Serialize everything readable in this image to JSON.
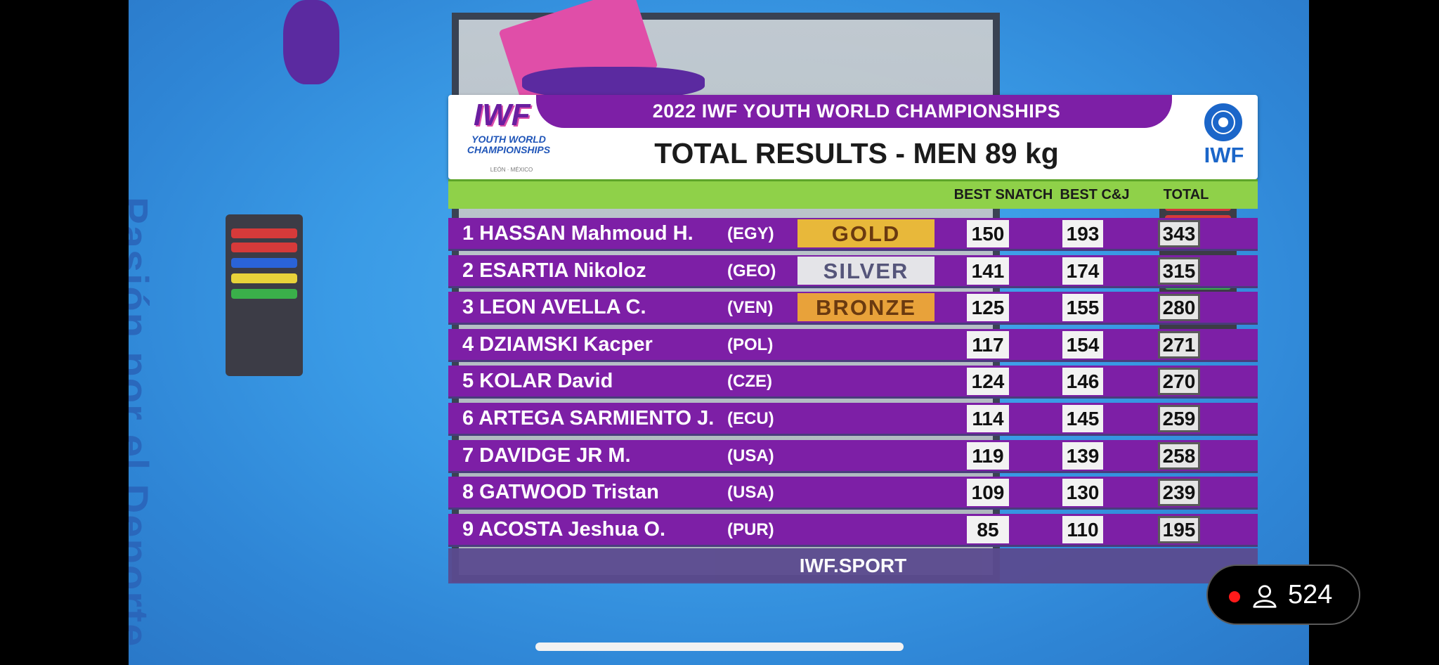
{
  "header": {
    "event": "2022 IWF YOUTH WORLD CHAMPIONSHIPS",
    "title": "TOTAL RESULTS - MEN 89 kg",
    "left_logo_big": "IWF",
    "left_logo_sub": "YOUTH WORLD CHAMPIONSHIPS",
    "left_logo_tiny": "LEÓN · MÉXICO",
    "right_logo": "IWF"
  },
  "columns": {
    "snatch": "BEST SNATCH",
    "cj": "BEST C&J",
    "total": "TOTAL"
  },
  "results": [
    {
      "rank_name": "1 HASSAN Mahmoud H.",
      "country": "(EGY)",
      "medal": "GOLD",
      "snatch": "150",
      "cj": "193",
      "total": "343"
    },
    {
      "rank_name": "2 ESARTIA Nikoloz",
      "country": "(GEO)",
      "medal": "SILVER",
      "snatch": "141",
      "cj": "174",
      "total": "315"
    },
    {
      "rank_name": "3 LEON AVELLA C.",
      "country": "(VEN)",
      "medal": "BRONZE",
      "snatch": "125",
      "cj": "155",
      "total": "280"
    },
    {
      "rank_name": "4 DZIAMSKI Kacper",
      "country": "(POL)",
      "medal": "",
      "snatch": "117",
      "cj": "154",
      "total": "271"
    },
    {
      "rank_name": "5 KOLAR David",
      "country": "(CZE)",
      "medal": "",
      "snatch": "124",
      "cj": "146",
      "total": "270"
    },
    {
      "rank_name": "6 ARTEGA SARMIENTO J.",
      "country": "(ECU)",
      "medal": "",
      "snatch": "114",
      "cj": "145",
      "total": "259"
    },
    {
      "rank_name": "7 DAVIDGE JR M.",
      "country": "(USA)",
      "medal": "",
      "snatch": "119",
      "cj": "139",
      "total": "258"
    },
    {
      "rank_name": "8 GATWOOD Tristan",
      "country": "(USA)",
      "medal": "",
      "snatch": "109",
      "cj": "130",
      "total": "239"
    },
    {
      "rank_name": "9 ACOSTA Jeshua O.",
      "country": "(PUR)",
      "medal": "",
      "snatch": "85",
      "cj": "110",
      "total": "195"
    }
  ],
  "medal_colors": {
    "GOLD": "#e8b83a",
    "SILVER": "#e4e4e8",
    "BRONZE": "#e8a23a"
  },
  "footer": {
    "site": "IWF.SPORT"
  },
  "background": {
    "sponsor_text": "Pasión por el Deporte"
  },
  "live": {
    "viewer_count": "524"
  }
}
